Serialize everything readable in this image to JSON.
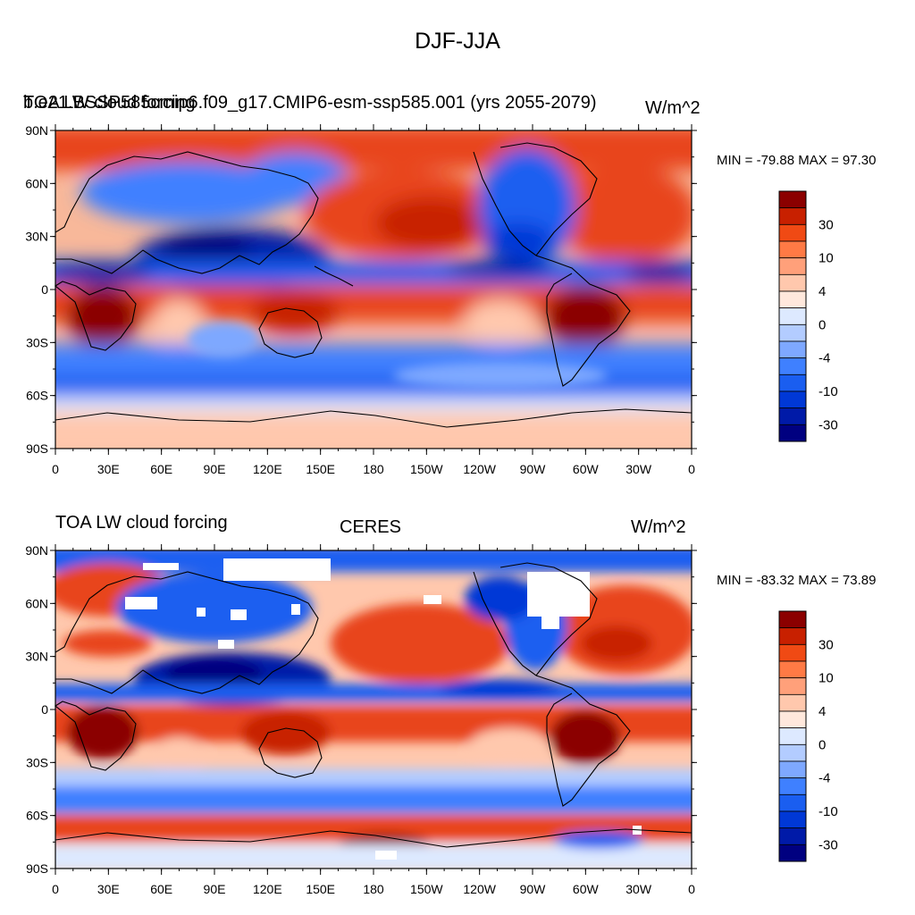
{
  "figure_title": "DJF-JJA",
  "colorbar": {
    "colors": [
      "#000080",
      "#001aa8",
      "#0038d6",
      "#1a5ef0",
      "#3f80ff",
      "#7ea8ff",
      "#b3ccff",
      "#dde9ff",
      "#ffe8dc",
      "#ffc8ad",
      "#ffa07a",
      "#ff7a45",
      "#f04a14",
      "#c82000",
      "#8b0000"
    ],
    "labels": [
      "30",
      "10",
      "4",
      "0",
      "-4",
      "-10",
      "-30"
    ]
  },
  "axes": {
    "lat_ticks": [
      "90N",
      "60N",
      "30N",
      "0",
      "30S",
      "60S",
      "90S"
    ],
    "lon_ticks": [
      "0",
      "30E",
      "60E",
      "90E",
      "120E",
      "150E",
      "180",
      "150W",
      "120W",
      "90W",
      "60W",
      "30W",
      "0"
    ]
  },
  "panels": [
    {
      "left_title": "TOA LW cloud forcing",
      "center_title": "b.e21.BSSP585cmip6.f09_g17.CMIP6-esm-ssp585.001 (yrs 2055-2079)",
      "right_title": "W/m^2",
      "min_max": "MIN = -79.88 MAX =  97.30"
    },
    {
      "left_title": "TOA LW cloud forcing",
      "center_title": "CERES",
      "right_title": "W/m^2",
      "min_max": "MIN = -83.32 MAX =  73.89"
    }
  ],
  "chart_data": [
    {
      "type": "heatmap",
      "title": "DJF-JJA",
      "dataset": "b.e21.BSSP585cmip6.f09_g17.CMIP6-esm-ssp585.001 (yrs 2055-2079)",
      "variable": "TOA LW cloud forcing",
      "units": "W/m^2",
      "min": -79.88,
      "max": 97.3,
      "xlim": [
        0,
        360
      ],
      "ylim": [
        -90,
        90
      ],
      "contour_levels": [
        -40,
        -30,
        -20,
        -10,
        -6,
        -4,
        -2,
        0,
        2,
        4,
        6,
        10,
        20,
        30,
        40
      ],
      "regions": [
        {
          "lon": [
            10,
            40
          ],
          "lat": [
            -5,
            -30
          ],
          "value": 45
        },
        {
          "lon": [
            120,
            150
          ],
          "lat": [
            -5,
            -25
          ],
          "value": 40
        },
        {
          "lon": [
            290,
            320
          ],
          "lat": [
            -5,
            -25
          ],
          "value": 45
        },
        {
          "lon": [
            150,
            230
          ],
          "lat": [
            60,
            20
          ],
          "value": 20
        },
        {
          "lon": [
            320,
            360
          ],
          "lat": [
            70,
            20
          ],
          "value": 20
        },
        {
          "lon": [
            70,
            130
          ],
          "lat": [
            40,
            10
          ],
          "value": -40
        },
        {
          "lon": [
            240,
            300
          ],
          "lat": [
            70,
            20
          ],
          "value": -25
        },
        {
          "lon": [
            0,
            360
          ],
          "lat": [
            -30,
            -60
          ],
          "value": -15
        },
        {
          "lon": [
            0,
            360
          ],
          "lat": [
            -65,
            -90
          ],
          "value": 4
        },
        {
          "lon": [
            0,
            360
          ],
          "lat": [
            15,
            5
          ],
          "value": -35
        }
      ]
    },
    {
      "type": "heatmap",
      "title": "DJF-JJA",
      "dataset": "CERES",
      "variable": "TOA LW cloud forcing",
      "units": "W/m^2",
      "min": -83.32,
      "max": 73.89,
      "xlim": [
        0,
        360
      ],
      "ylim": [
        -90,
        90
      ],
      "contour_levels": [
        -40,
        -30,
        -20,
        -10,
        -6,
        -4,
        -2,
        0,
        2,
        4,
        6,
        10,
        20,
        30,
        40
      ],
      "regions": [
        {
          "lon": [
            10,
            40
          ],
          "lat": [
            -5,
            -30
          ],
          "value": 45
        },
        {
          "lon": [
            120,
            150
          ],
          "lat": [
            -5,
            -25
          ],
          "value": 40
        },
        {
          "lon": [
            290,
            320
          ],
          "lat": [
            -5,
            -25
          ],
          "value": 45
        },
        {
          "lon": [
            160,
            230
          ],
          "lat": [
            55,
            20
          ],
          "value": 20
        },
        {
          "lon": [
            320,
            360
          ],
          "lat": [
            70,
            20
          ],
          "value": 20
        },
        {
          "lon": [
            70,
            130
          ],
          "lat": [
            40,
            10
          ],
          "value": -40
        },
        {
          "lon": [
            0,
            360
          ],
          "lat": [
            -40,
            -60
          ],
          "value": -15
        },
        {
          "lon": [
            0,
            360
          ],
          "lat": [
            -60,
            -75
          ],
          "value": 20
        },
        {
          "lon": [
            0,
            360
          ],
          "lat": [
            15,
            5
          ],
          "value": -35
        }
      ]
    }
  ]
}
